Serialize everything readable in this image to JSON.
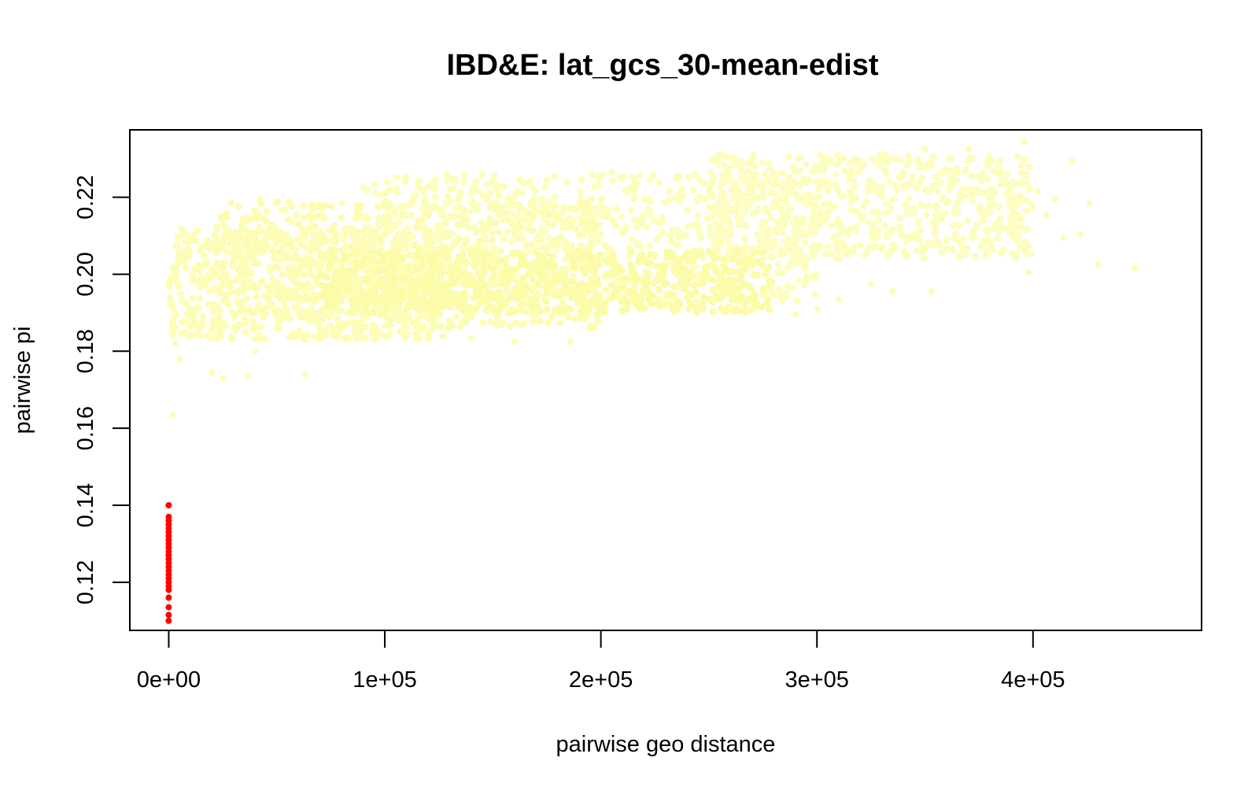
{
  "chart_data": {
    "type": "scatter",
    "title": "IBD&E: lat_gcs_30-mean-edist",
    "xlabel": "pairwise geo distance",
    "ylabel": "pairwise pi",
    "xlim": [
      -18000,
      478000
    ],
    "ylim": [
      0.1075,
      0.2375
    ],
    "x_ticks": [
      0,
      100000,
      200000,
      300000,
      400000
    ],
    "x_tick_labels": [
      "0e+00",
      "1e+05",
      "2e+05",
      "3e+05",
      "4e+05"
    ],
    "y_ticks": [
      0.12,
      0.14,
      0.16,
      0.18,
      0.2,
      0.22
    ],
    "y_tick_labels": [
      "0.12",
      "0.14",
      "0.16",
      "0.18",
      "0.20",
      "0.22"
    ],
    "grid": false,
    "legend": "none",
    "series": [
      {
        "color": "#ff0000",
        "points": [
          [
            0,
            0.11
          ],
          [
            0,
            0.1115
          ],
          [
            0,
            0.1135
          ],
          [
            0,
            0.116
          ],
          [
            0,
            0.118
          ],
          [
            0,
            0.119
          ],
          [
            0,
            0.12
          ],
          [
            0,
            0.121
          ],
          [
            0,
            0.122
          ],
          [
            0,
            0.123
          ],
          [
            0,
            0.124
          ],
          [
            0,
            0.125
          ],
          [
            0,
            0.126
          ],
          [
            0,
            0.127
          ],
          [
            0,
            0.128
          ],
          [
            0,
            0.129
          ],
          [
            0,
            0.13
          ],
          [
            0,
            0.131
          ],
          [
            0,
            0.132
          ],
          [
            0,
            0.133
          ],
          [
            0,
            0.134
          ],
          [
            0,
            0.135
          ],
          [
            0,
            0.136
          ],
          [
            0,
            0.137
          ],
          [
            0,
            0.14
          ]
        ]
      },
      {
        "color": "#fdfdb8",
        "points": [
          [
            2000,
            0.1635
          ],
          [
            3000,
            0.182
          ],
          [
            5000,
            0.178
          ],
          [
            6000,
            0.2045
          ],
          [
            8000,
            0.2055
          ],
          [
            12000,
            0.1845
          ],
          [
            15000,
            0.199
          ],
          [
            20000,
            0.1745
          ],
          [
            22000,
            0.211
          ],
          [
            25000,
            0.173
          ],
          [
            28000,
            0.2115
          ],
          [
            30000,
            0.186
          ],
          [
            34000,
            0.2135
          ],
          [
            37000,
            0.1735
          ],
          [
            40000,
            0.18
          ],
          [
            42000,
            0.2195
          ],
          [
            45000,
            0.1915
          ],
          [
            50000,
            0.1965
          ],
          [
            52000,
            0.2165
          ],
          [
            55000,
            0.2005
          ],
          [
            60000,
            0.19
          ],
          [
            63000,
            0.174
          ],
          [
            65000,
            0.2155
          ],
          [
            70000,
            0.2025
          ],
          [
            75000,
            0.1865
          ],
          [
            80000,
            0.2185
          ],
          [
            85000,
            0.1875
          ],
          [
            88000,
            0.1925
          ],
          [
            90000,
            0.2225
          ],
          [
            95000,
            0.2045
          ],
          [
            100000,
            0.1865
          ],
          [
            105000,
            0.2155
          ],
          [
            110000,
            0.2005
          ],
          [
            115000,
            0.1885
          ],
          [
            120000,
            0.2225
          ],
          [
            125000,
            0.2065
          ],
          [
            130000,
            0.1945
          ],
          [
            135000,
            0.2145
          ],
          [
            140000,
            0.1835
          ],
          [
            145000,
            0.2205
          ],
          [
            150000,
            0.2035
          ],
          [
            155000,
            0.1875
          ],
          [
            160000,
            0.1825
          ],
          [
            165000,
            0.2165
          ],
          [
            170000,
            0.2065
          ],
          [
            175000,
            0.2245
          ],
          [
            180000,
            0.1955
          ],
          [
            186000,
            0.1825
          ],
          [
            190000,
            0.2185
          ],
          [
            195000,
            0.2075
          ],
          [
            200000,
            0.1935
          ],
          [
            205000,
            0.2265
          ],
          [
            210000,
            0.2105
          ],
          [
            215000,
            0.1975
          ],
          [
            220000,
            0.2195
          ],
          [
            225000,
            0.2045
          ],
          [
            230000,
            0.1935
          ],
          [
            235000,
            0.2255
          ],
          [
            240000,
            0.2125
          ],
          [
            245000,
            0.1995
          ],
          [
            250000,
            0.2215
          ],
          [
            255000,
            0.2085
          ],
          [
            260000,
            0.1915
          ],
          [
            265000,
            0.2275
          ],
          [
            270000,
            0.2065
          ],
          [
            275000,
            0.1945
          ],
          [
            280000,
            0.2235
          ],
          [
            285000,
            0.2055
          ],
          [
            290000,
            0.1895
          ],
          [
            295000,
            0.2285
          ],
          [
            300000,
            0.191
          ],
          [
            305000,
            0.2215
          ],
          [
            310000,
            0.1935
          ],
          [
            315000,
            0.2265
          ],
          [
            320000,
            0.2075
          ],
          [
            325000,
            0.1975
          ],
          [
            330000,
            0.2305
          ],
          [
            335000,
            0.1955
          ],
          [
            340000,
            0.2255
          ],
          [
            345000,
            0.2105
          ],
          [
            350000,
            0.2325
          ],
          [
            353000,
            0.1955
          ],
          [
            356000,
            0.2215
          ],
          [
            360000,
            0.2085
          ],
          [
            365000,
            0.2265
          ],
          [
            370000,
            0.2325
          ],
          [
            375000,
            0.2175
          ],
          [
            380000,
            0.2085
          ],
          [
            385000,
            0.2265
          ],
          [
            390000,
            0.2125
          ],
          [
            396000,
            0.2345
          ],
          [
            398000,
            0.2005
          ],
          [
            402000,
            0.2215
          ],
          [
            406000,
            0.2155
          ],
          [
            410000,
            0.2195
          ],
          [
            414000,
            0.2095
          ],
          [
            418000,
            0.2295
          ],
          [
            422000,
            0.2105
          ],
          [
            426000,
            0.2185
          ],
          [
            430000,
            0.2025
          ],
          [
            447000,
            0.2015
          ]
        ]
      }
    ],
    "clouds": [
      {
        "color": "#fdfdb8",
        "x": [
          0,
          130000
        ],
        "y": [
          0.183,
          0.212
        ]
      },
      {
        "color": "#fcfcb4",
        "x": [
          20000,
          200000
        ],
        "y": [
          0.186,
          0.219
        ]
      },
      {
        "color": "#fdfdbd",
        "x": [
          90000,
          300000
        ],
        "y": [
          0.193,
          0.226
        ]
      },
      {
        "color": "#fdfdc2",
        "x": [
          250000,
          400000
        ],
        "y": [
          0.204,
          0.231
        ]
      },
      {
        "color": "#fbfba8",
        "x": [
          70000,
          280000
        ],
        "y": [
          0.19,
          0.206
        ]
      }
    ]
  }
}
